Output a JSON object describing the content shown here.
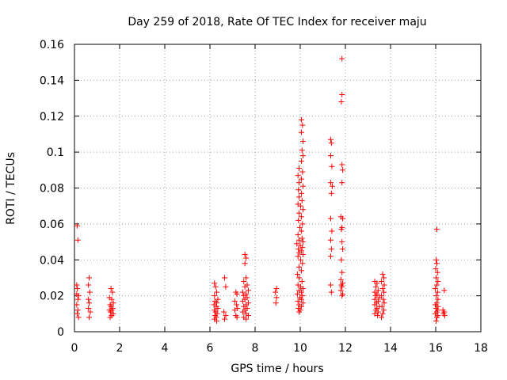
{
  "chart_data": {
    "type": "scatter",
    "title": "Day 259 of 2018, Rate Of TEC Index for receiver maju",
    "xlabel": "GPS time / hours",
    "ylabel": "ROTI / TECUs",
    "xlim": [
      0,
      18
    ],
    "ylim": [
      0,
      0.16
    ],
    "xticks": [
      0,
      2,
      4,
      6,
      8,
      10,
      12,
      14,
      16,
      18
    ],
    "xtick_labels": [
      "0",
      "2",
      "4",
      "6",
      "8",
      "10",
      "12",
      "14",
      "16",
      "18"
    ],
    "yticks": [
      0,
      0.02,
      0.04,
      0.06,
      0.08,
      0.1,
      0.12,
      0.14,
      0.16
    ],
    "ytick_labels": [
      "0",
      "0.02",
      "0.04",
      "0.06",
      "0.08",
      "0.1",
      "0.12",
      "0.14",
      "0.16"
    ],
    "grid": true,
    "marker": "plus",
    "color": "#ff0000",
    "series": [
      {
        "name": "ROTI",
        "points": [
          [
            0.12,
            0.059
          ],
          [
            0.15,
            0.051
          ],
          [
            0.1,
            0.026
          ],
          [
            0.13,
            0.024
          ],
          [
            0.1,
            0.021
          ],
          [
            0.18,
            0.02
          ],
          [
            0.15,
            0.018
          ],
          [
            0.1,
            0.015
          ],
          [
            0.15,
            0.012
          ],
          [
            0.12,
            0.01
          ],
          [
            0.18,
            0.008
          ],
          [
            0.65,
            0.03
          ],
          [
            0.62,
            0.026
          ],
          [
            0.68,
            0.022
          ],
          [
            0.62,
            0.018
          ],
          [
            0.65,
            0.016
          ],
          [
            0.62,
            0.013
          ],
          [
            0.7,
            0.011
          ],
          [
            0.65,
            0.008
          ],
          [
            1.62,
            0.024
          ],
          [
            1.68,
            0.022
          ],
          [
            1.55,
            0.019
          ],
          [
            1.65,
            0.018
          ],
          [
            1.72,
            0.016
          ],
          [
            1.58,
            0.015
          ],
          [
            1.62,
            0.014
          ],
          [
            1.7,
            0.013
          ],
          [
            1.55,
            0.012
          ],
          [
            1.65,
            0.012
          ],
          [
            1.6,
            0.011
          ],
          [
            1.72,
            0.01
          ],
          [
            1.65,
            0.009
          ],
          [
            1.58,
            0.008
          ],
          [
            6.2,
            0.027
          ],
          [
            6.25,
            0.025
          ],
          [
            6.3,
            0.022
          ],
          [
            6.2,
            0.02
          ],
          [
            6.35,
            0.018
          ],
          [
            6.22,
            0.017
          ],
          [
            6.3,
            0.016
          ],
          [
            6.18,
            0.015
          ],
          [
            6.28,
            0.014
          ],
          [
            6.35,
            0.013
          ],
          [
            6.2,
            0.012
          ],
          [
            6.25,
            0.011
          ],
          [
            6.32,
            0.01
          ],
          [
            6.22,
            0.009
          ],
          [
            6.28,
            0.008
          ],
          [
            6.2,
            0.007
          ],
          [
            6.3,
            0.006
          ],
          [
            6.65,
            0.03
          ],
          [
            6.7,
            0.025
          ],
          [
            6.62,
            0.011
          ],
          [
            6.7,
            0.009
          ],
          [
            6.65,
            0.007
          ],
          [
            7.15,
            0.022
          ],
          [
            7.2,
            0.021
          ],
          [
            7.1,
            0.017
          ],
          [
            7.18,
            0.015
          ],
          [
            7.22,
            0.013
          ],
          [
            7.1,
            0.012
          ],
          [
            7.15,
            0.009
          ],
          [
            7.2,
            0.008
          ],
          [
            7.55,
            0.043
          ],
          [
            7.6,
            0.041
          ],
          [
            7.55,
            0.038
          ],
          [
            7.6,
            0.03
          ],
          [
            7.5,
            0.028
          ],
          [
            7.65,
            0.026
          ],
          [
            7.55,
            0.025
          ],
          [
            7.7,
            0.023
          ],
          [
            7.45,
            0.022
          ],
          [
            7.6,
            0.021
          ],
          [
            7.5,
            0.02
          ],
          [
            7.65,
            0.019
          ],
          [
            7.55,
            0.018
          ],
          [
            7.45,
            0.017
          ],
          [
            7.7,
            0.016
          ],
          [
            7.6,
            0.015
          ],
          [
            7.5,
            0.014
          ],
          [
            7.65,
            0.013
          ],
          [
            7.55,
            0.012
          ],
          [
            7.45,
            0.011
          ],
          [
            7.6,
            0.01
          ],
          [
            7.7,
            0.009
          ],
          [
            7.5,
            0.008
          ],
          [
            7.6,
            0.007
          ],
          [
            8.95,
            0.024
          ],
          [
            8.9,
            0.022
          ],
          [
            8.95,
            0.019
          ],
          [
            8.92,
            0.016
          ],
          [
            10.05,
            0.118
          ],
          [
            10.1,
            0.115
          ],
          [
            10.05,
            0.111
          ],
          [
            10.12,
            0.106
          ],
          [
            10.08,
            0.101
          ],
          [
            10.12,
            0.098
          ],
          [
            10.05,
            0.095
          ],
          [
            9.95,
            0.091
          ],
          [
            10.1,
            0.089
          ],
          [
            9.9,
            0.087
          ],
          [
            10.05,
            0.085
          ],
          [
            9.95,
            0.083
          ],
          [
            10.12,
            0.081
          ],
          [
            9.92,
            0.079
          ],
          [
            10.05,
            0.077
          ],
          [
            9.95,
            0.075
          ],
          [
            10.08,
            0.073
          ],
          [
            9.9,
            0.071
          ],
          [
            10.02,
            0.07
          ],
          [
            10.12,
            0.068
          ],
          [
            9.95,
            0.066
          ],
          [
            10.05,
            0.064
          ],
          [
            9.92,
            0.062
          ],
          [
            10.1,
            0.06
          ],
          [
            9.98,
            0.058
          ],
          [
            10.05,
            0.056
          ],
          [
            9.9,
            0.054
          ],
          [
            10.08,
            0.052
          ],
          [
            9.95,
            0.051
          ],
          [
            10.12,
            0.05
          ],
          [
            9.85,
            0.049
          ],
          [
            10.0,
            0.048
          ],
          [
            10.1,
            0.047
          ],
          [
            9.92,
            0.046
          ],
          [
            10.05,
            0.045
          ],
          [
            9.95,
            0.044
          ],
          [
            10.12,
            0.043
          ],
          [
            9.9,
            0.042
          ],
          [
            10.02,
            0.04
          ],
          [
            10.1,
            0.038
          ],
          [
            9.95,
            0.036
          ],
          [
            10.05,
            0.034
          ],
          [
            9.88,
            0.032
          ],
          [
            9.95,
            0.03
          ],
          [
            10.08,
            0.028
          ],
          [
            9.9,
            0.026
          ],
          [
            10.02,
            0.025
          ],
          [
            10.12,
            0.024
          ],
          [
            9.95,
            0.023
          ],
          [
            10.05,
            0.022
          ],
          [
            9.88,
            0.021
          ],
          [
            10.1,
            0.02
          ],
          [
            9.98,
            0.019
          ],
          [
            10.05,
            0.018
          ],
          [
            9.9,
            0.017
          ],
          [
            10.12,
            0.016
          ],
          [
            9.95,
            0.015
          ],
          [
            10.05,
            0.014
          ],
          [
            9.92,
            0.013
          ],
          [
            10.0,
            0.012
          ],
          [
            9.95,
            0.011
          ],
          [
            11.35,
            0.107
          ],
          [
            11.38,
            0.105
          ],
          [
            11.35,
            0.098
          ],
          [
            11.4,
            0.092
          ],
          [
            11.35,
            0.083
          ],
          [
            11.42,
            0.081
          ],
          [
            11.38,
            0.077
          ],
          [
            11.35,
            0.063
          ],
          [
            11.4,
            0.056
          ],
          [
            11.35,
            0.051
          ],
          [
            11.38,
            0.046
          ],
          [
            11.35,
            0.042
          ],
          [
            11.35,
            0.026
          ],
          [
            11.38,
            0.022
          ],
          [
            11.85,
            0.152
          ],
          [
            11.85,
            0.132
          ],
          [
            11.82,
            0.128
          ],
          [
            11.85,
            0.093
          ],
          [
            11.88,
            0.09
          ],
          [
            11.85,
            0.083
          ],
          [
            11.8,
            0.064
          ],
          [
            11.88,
            0.063
          ],
          [
            11.85,
            0.058
          ],
          [
            11.82,
            0.057
          ],
          [
            11.85,
            0.05
          ],
          [
            11.88,
            0.046
          ],
          [
            11.82,
            0.04
          ],
          [
            11.85,
            0.033
          ],
          [
            11.8,
            0.029
          ],
          [
            11.88,
            0.027
          ],
          [
            11.82,
            0.026
          ],
          [
            11.85,
            0.025
          ],
          [
            11.8,
            0.023
          ],
          [
            11.88,
            0.021
          ],
          [
            11.85,
            0.02
          ],
          [
            13.3,
            0.028
          ],
          [
            13.4,
            0.027
          ],
          [
            13.35,
            0.025
          ],
          [
            13.45,
            0.023
          ],
          [
            13.3,
            0.022
          ],
          [
            13.4,
            0.021
          ],
          [
            13.35,
            0.02
          ],
          [
            13.5,
            0.019
          ],
          [
            13.3,
            0.018
          ],
          [
            13.45,
            0.017
          ],
          [
            13.38,
            0.016
          ],
          [
            13.3,
            0.015
          ],
          [
            13.5,
            0.014
          ],
          [
            13.4,
            0.013
          ],
          [
            13.35,
            0.012
          ],
          [
            13.45,
            0.011
          ],
          [
            13.3,
            0.01
          ],
          [
            13.42,
            0.009
          ],
          [
            13.65,
            0.032
          ],
          [
            13.7,
            0.03
          ],
          [
            13.6,
            0.028
          ],
          [
            13.72,
            0.026
          ],
          [
            13.65,
            0.024
          ],
          [
            13.7,
            0.022
          ],
          [
            13.6,
            0.02
          ],
          [
            13.68,
            0.018
          ],
          [
            13.72,
            0.016
          ],
          [
            13.62,
            0.014
          ],
          [
            13.7,
            0.012
          ],
          [
            13.65,
            0.01
          ],
          [
            13.6,
            0.008
          ],
          [
            16.05,
            0.057
          ],
          [
            16.02,
            0.04
          ],
          [
            16.05,
            0.038
          ],
          [
            16.0,
            0.035
          ],
          [
            16.08,
            0.033
          ],
          [
            16.02,
            0.03
          ],
          [
            16.1,
            0.028
          ],
          [
            16.05,
            0.026
          ],
          [
            15.98,
            0.024
          ],
          [
            16.08,
            0.022
          ],
          [
            16.02,
            0.02
          ],
          [
            16.1,
            0.018
          ],
          [
            16.05,
            0.016
          ],
          [
            15.98,
            0.015
          ],
          [
            16.1,
            0.014
          ],
          [
            16.02,
            0.013
          ],
          [
            16.08,
            0.012
          ],
          [
            16.05,
            0.011
          ],
          [
            15.98,
            0.01
          ],
          [
            16.1,
            0.009
          ],
          [
            16.05,
            0.008
          ],
          [
            16.02,
            0.006
          ],
          [
            16.38,
            0.023
          ],
          [
            16.32,
            0.012
          ],
          [
            16.38,
            0.011
          ],
          [
            16.35,
            0.01
          ],
          [
            16.4,
            0.009
          ]
        ]
      }
    ]
  }
}
